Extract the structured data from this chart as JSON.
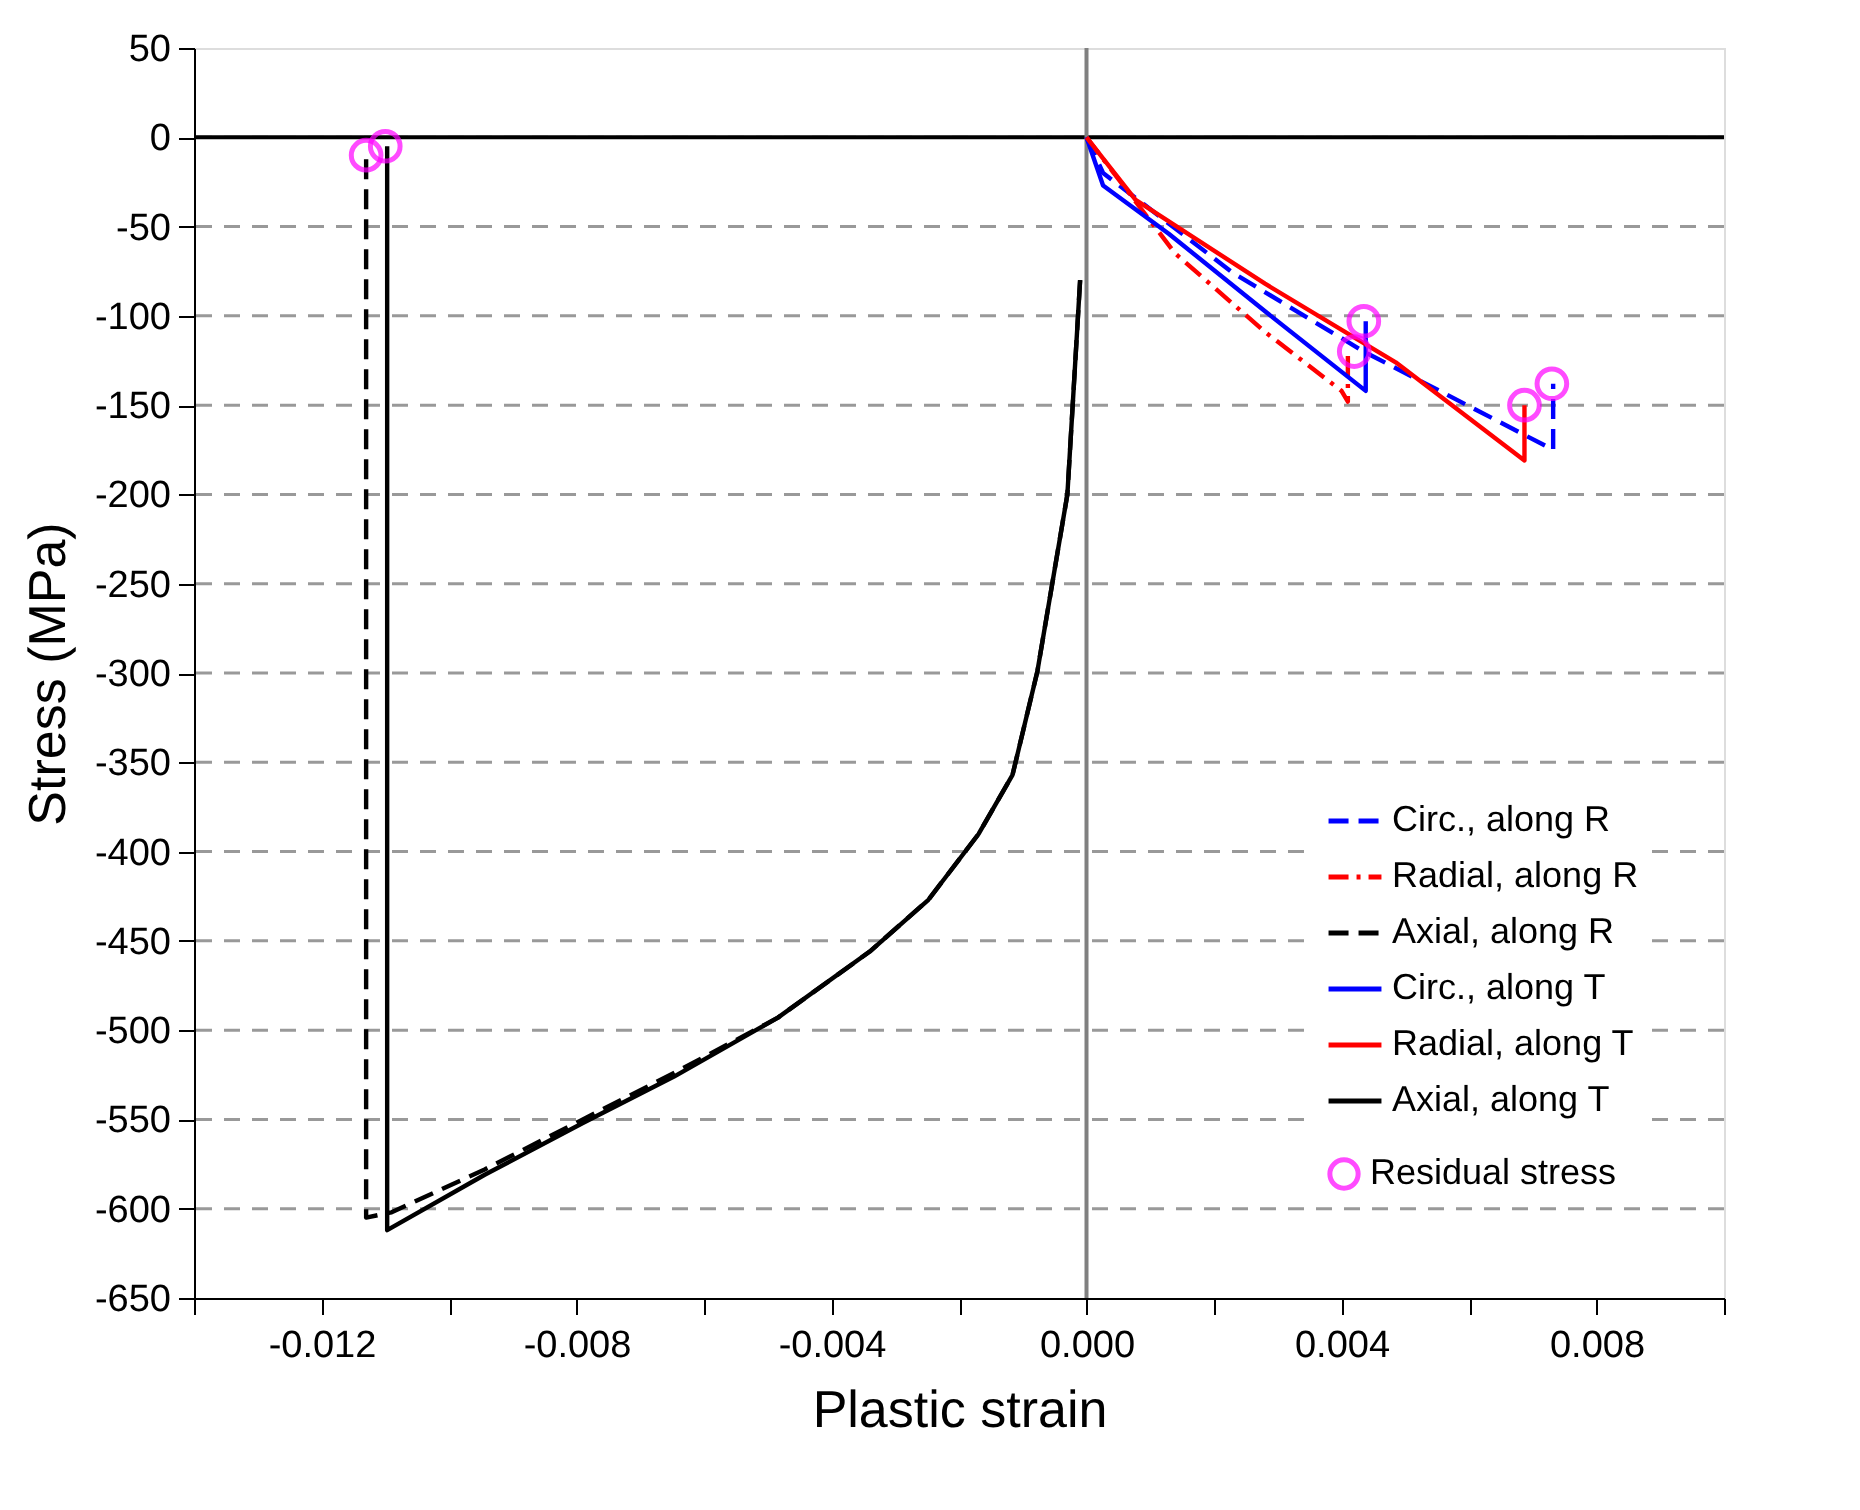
{
  "chart_data": {
    "type": "line",
    "xlabel": "Plastic strain",
    "ylabel": "Stress (MPa)",
    "xlim": [
      -0.014,
      0.01
    ],
    "xticks": [
      {
        "value": -0.014,
        "label": null
      },
      {
        "value": -0.012,
        "label": "-0.012"
      },
      {
        "value": -0.01,
        "label": null
      },
      {
        "value": -0.008,
        "label": "-0.008"
      },
      {
        "value": -0.006,
        "label": null
      },
      {
        "value": -0.004,
        "label": "-0.004"
      },
      {
        "value": -0.002,
        "label": null
      },
      {
        "value": 0,
        "label": "0.000"
      },
      {
        "value": 0.002,
        "label": null
      },
      {
        "value": 0.004,
        "label": "0.004"
      },
      {
        "value": 0.006,
        "label": null
      },
      {
        "value": 0.008,
        "label": "0.008"
      },
      {
        "value": 0.01,
        "label": null
      }
    ],
    "ylim": [
      -650,
      50
    ],
    "yticks": [
      50,
      0,
      -50,
      -100,
      -150,
      -200,
      -250,
      -300,
      -350,
      -400,
      -450,
      -500,
      -550,
      -600,
      -650
    ],
    "grid": "y",
    "legend": "bottom right",
    "ref_lines": [
      {
        "axis": "y",
        "value": 0,
        "color": "#000000"
      },
      {
        "axis": "x",
        "value": 0,
        "color": "#808080"
      }
    ],
    "series": [
      {
        "name": "Circ., along R",
        "color": "#0000ff",
        "line_style": "dashed",
        "x": [
          0,
          0.00026,
          0.0023,
          0.00435,
          0.00732,
          0.00732
        ],
        "values": [
          0,
          -20,
          -76,
          -120,
          -175,
          -138
        ]
      },
      {
        "name": "Radial, along R",
        "color": "#ff0000",
        "line_style": "dashdot",
        "x": [
          0,
          0.00139,
          0.0028,
          0.004,
          0.0041,
          0.0041
        ],
        "values": [
          0,
          -65,
          -109,
          -142,
          -148,
          -120
        ]
      },
      {
        "name": "Axial, along R",
        "color": "#000000",
        "line_style": "dashed",
        "x": [
          -0.0001,
          -0.0003,
          -0.00077,
          -0.00116,
          -0.00169,
          -0.00248,
          -0.0034,
          -0.00484,
          -0.00647,
          -0.0079,
          -0.00944,
          -0.0109,
          -0.0113,
          -0.0113
        ],
        "values": [
          -80,
          -200,
          -299,
          -357,
          -390,
          -427,
          -456,
          -493,
          -524,
          -550,
          -578,
          -602,
          -605,
          -10
        ]
      },
      {
        "name": "Circ., along T",
        "color": "#0000ff",
        "line_style": "solid",
        "x": [
          0,
          0.00026,
          0.00129,
          0.00282,
          0.00438,
          0.00438
        ],
        "values": [
          0,
          -27,
          -54,
          -98,
          -142,
          -103
        ]
      },
      {
        "name": "Radial, along T",
        "color": "#ff0000",
        "line_style": "solid",
        "x": [
          0,
          0.00077,
          0.0028,
          0.00485,
          0.00687,
          0.00687
        ],
        "values": [
          0,
          -35,
          -82,
          -126,
          -181,
          -150
        ]
      },
      {
        "name": "Axial, along T",
        "color": "#000000",
        "line_style": "solid",
        "x": [
          -0.0001,
          -0.0003,
          -0.00077,
          -0.00116,
          -0.00169,
          -0.00248,
          -0.0034,
          -0.00484,
          -0.00647,
          -0.0079,
          -0.00944,
          -0.01097,
          -0.01097
        ],
        "values": [
          -80,
          -200,
          -299,
          -357,
          -390,
          -427,
          -456,
          -493,
          -526,
          -552,
          -581,
          -612,
          -5
        ]
      },
      {
        "name": "Residual stress",
        "type": "scatter",
        "marker": "circle",
        "color": "#ff00ff",
        "x": [
          -0.0113,
          -0.011,
          0.0042,
          0.00435,
          0.00687,
          0.0073
        ],
        "values": [
          -10,
          -5,
          -120,
          -103,
          -150,
          -138
        ]
      }
    ]
  }
}
